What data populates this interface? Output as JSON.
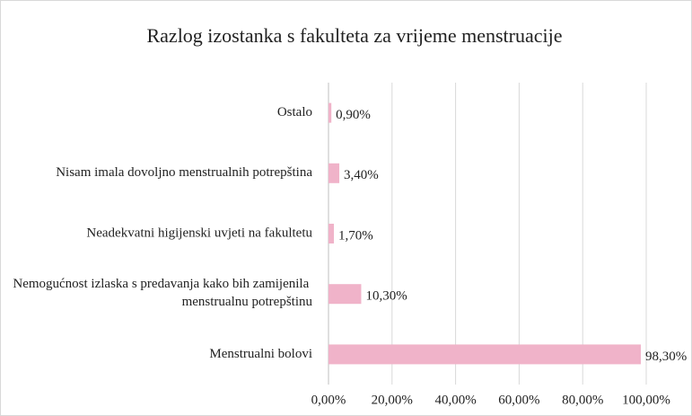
{
  "chart_data": {
    "type": "bar",
    "orientation": "horizontal",
    "title": "Razlog izostanka s fakulteta za vrijeme menstruacije",
    "categories": [
      "Ostalo",
      "Nisam imala dovoljno menstrualnih potrepština",
      "Neadekvatni higijenski uvjeti na fakultetu",
      "Nemogućnost izlaska s predavanja kako bih zamijenila menstrualnu potrepštinu",
      "Menstrualni bolovi"
    ],
    "values": [
      0.9,
      3.4,
      1.7,
      10.3,
      98.3
    ],
    "value_labels": [
      "0,90%",
      "3,40%",
      "1,70%",
      "10,30%",
      "98,30%"
    ],
    "color": "#f0b3c9",
    "xlim": [
      0,
      100
    ],
    "xticks": [
      {
        "value": 0,
        "label": "0,00%"
      },
      {
        "value": 20,
        "label": "20,00%"
      },
      {
        "value": 40,
        "label": "40,00%"
      },
      {
        "value": 60,
        "label": "60,00%"
      },
      {
        "value": 80,
        "label": "80,00%"
      },
      {
        "value": 100,
        "label": "100,00%"
      }
    ],
    "grid": true
  }
}
